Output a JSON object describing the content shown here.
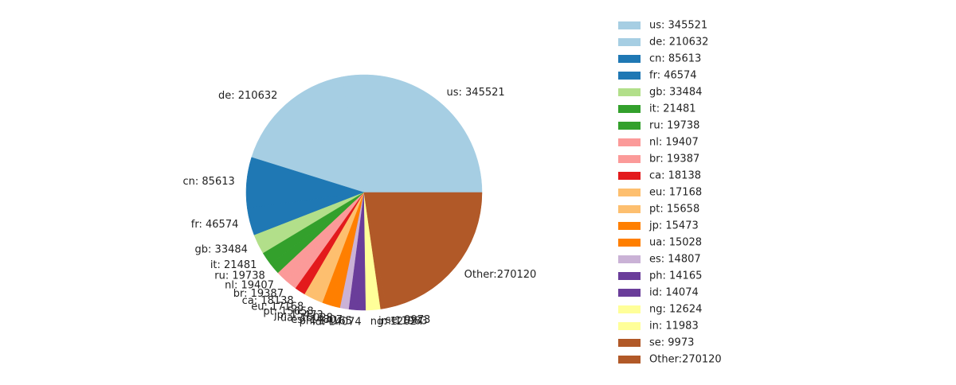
{
  "chart_data": {
    "type": "pie",
    "legend_position": "right",
    "start_angle_deg": 0,
    "direction": "counterclockwise",
    "slices": [
      {
        "label": "us",
        "value": 345521,
        "legend": "us: 345521",
        "color": "#a6cee3"
      },
      {
        "label": "de",
        "value": 210632,
        "legend": "de: 210632",
        "color": "#a6cee3"
      },
      {
        "label": "cn",
        "value": 85613,
        "legend": "cn: 85613",
        "color": "#1f78b4"
      },
      {
        "label": "fr",
        "value": 46574,
        "legend": "fr: 46574",
        "color": "#1f78b4"
      },
      {
        "label": "gb",
        "value": 33484,
        "legend": "gb: 33484",
        "color": "#b2df8a"
      },
      {
        "label": "it",
        "value": 21481,
        "legend": "it: 21481",
        "color": "#33a02c"
      },
      {
        "label": "ru",
        "value": 19738,
        "legend": "ru: 19738",
        "color": "#33a02c"
      },
      {
        "label": "nl",
        "value": 19407,
        "legend": "nl: 19407",
        "color": "#fb9a99"
      },
      {
        "label": "br",
        "value": 19387,
        "legend": "br: 19387",
        "color": "#fb9a99"
      },
      {
        "label": "ca",
        "value": 18138,
        "legend": "ca: 18138",
        "color": "#e31a1c"
      },
      {
        "label": "eu",
        "value": 17168,
        "legend": "eu: 17168",
        "color": "#fdbf6f"
      },
      {
        "label": "pt",
        "value": 15658,
        "legend": "pt: 15658",
        "color": "#fdbf6f"
      },
      {
        "label": "jp",
        "value": 15473,
        "legend": "jp: 15473",
        "color": "#ff7f00"
      },
      {
        "label": "ua",
        "value": 15028,
        "legend": "ua: 15028",
        "color": "#ff7f00"
      },
      {
        "label": "es",
        "value": 14807,
        "legend": "es: 14807",
        "color": "#cab2d6"
      },
      {
        "label": "ph",
        "value": 14165,
        "legend": "ph: 14165",
        "color": "#6a3d9a"
      },
      {
        "label": "id",
        "value": 14074,
        "legend": "id: 14074",
        "color": "#6a3d9a"
      },
      {
        "label": "ng",
        "value": 12624,
        "legend": "ng: 12624",
        "color": "#ffff99"
      },
      {
        "label": "in",
        "value": 11983,
        "legend": "in: 11983",
        "color": "#ffff99"
      },
      {
        "label": "se",
        "value": 9973,
        "legend": "se: 9973",
        "color": "#b15928"
      },
      {
        "label": "Other",
        "value": 270120,
        "legend": "Other:270120",
        "color": "#b15928"
      }
    ]
  }
}
